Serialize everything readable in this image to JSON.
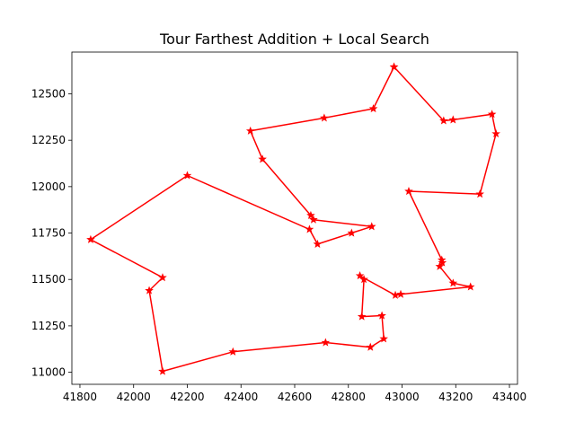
{
  "chart_data": {
    "type": "line",
    "title": "Tour Farthest Addition + Local Search",
    "xlabel": "",
    "ylabel": "",
    "xlim": [
      41770,
      43430
    ],
    "ylim": [
      10935,
      12725
    ],
    "x_ticks": [
      41800,
      42000,
      42200,
      42400,
      42600,
      42800,
      43000,
      43200,
      43400
    ],
    "y_ticks": [
      11000,
      11250,
      11500,
      11750,
      12000,
      12250,
      12500
    ],
    "grid": false,
    "legend": "none",
    "colors": {
      "line": "#ff0000",
      "marker": "#ff0000",
      "axes": "#000000"
    },
    "marker": "star",
    "series": [
      {
        "x": [
          42970,
          42893,
          42710,
          42435,
          42480,
          42660,
          42670,
          42887,
          42812,
          42685,
          42655,
          42200,
          41840,
          42108,
          42058,
          42108,
          42370,
          42715,
          42882,
          42932,
          42925,
          42850,
          42858,
          42843,
          42975,
          42995,
          43255,
          43190,
          43140,
          43150,
          43148,
          43025,
          43290,
          43350,
          43335,
          43190,
          43155,
          42970
        ],
        "y": [
          12645,
          12420,
          12370,
          12300,
          12148,
          11845,
          11822,
          11785,
          11750,
          11690,
          11770,
          12060,
          11715,
          11510,
          11440,
          11005,
          11110,
          11160,
          11135,
          11180,
          11305,
          11300,
          11500,
          11520,
          11415,
          11420,
          11460,
          11480,
          11570,
          11590,
          11605,
          11975,
          11960,
          12285,
          12390,
          12360,
          12355,
          12645
        ]
      }
    ]
  }
}
